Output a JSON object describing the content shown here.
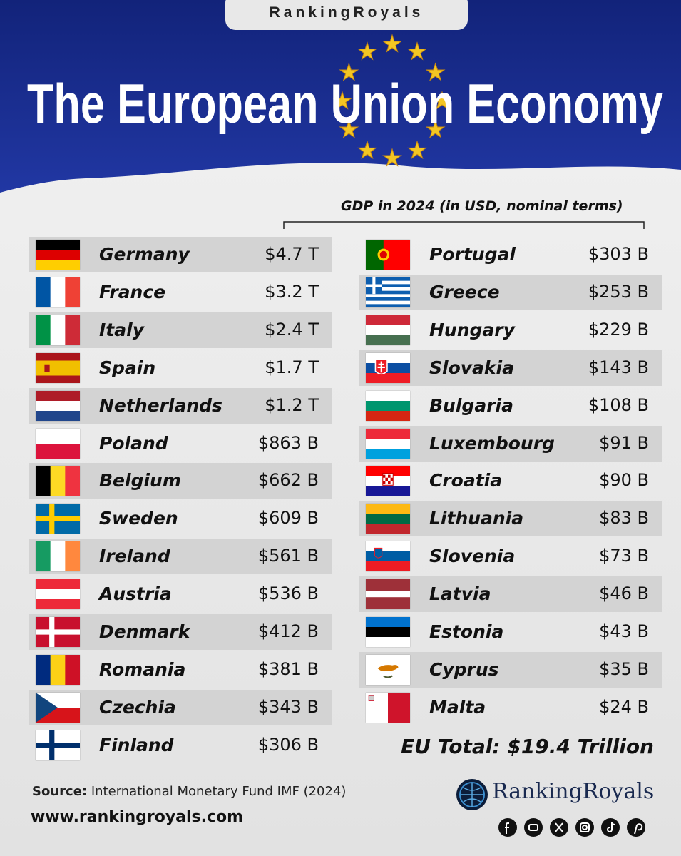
{
  "header": {
    "brand": "RankingRoyals",
    "title": "The European Union Economy"
  },
  "subtitle": "GDP in 2024 (in USD, nominal terms)",
  "table": {
    "left": [
      [
        "Germany",
        "$4.7 T"
      ],
      [
        "France",
        "$3.2 T"
      ],
      [
        "Italy",
        "$2.4 T"
      ],
      [
        "Spain",
        "$1.7 T"
      ],
      [
        "Netherlands",
        "$1.2 T"
      ],
      [
        "Poland",
        "$863 B"
      ],
      [
        "Belgium",
        "$662 B"
      ],
      [
        "Sweden",
        "$609 B"
      ],
      [
        "Ireland",
        "$561 B"
      ],
      [
        "Austria",
        "$536 B"
      ],
      [
        "Denmark",
        "$412 B"
      ],
      [
        "Romania",
        "$381 B"
      ],
      [
        "Czechia",
        "$343 B"
      ],
      [
        "Finland",
        "$306 B"
      ]
    ],
    "right": [
      [
        "Portugal",
        "$303 B"
      ],
      [
        "Greece",
        "$253 B"
      ],
      [
        "Hungary",
        "$229 B"
      ],
      [
        "Slovakia",
        "$143 B"
      ],
      [
        "Bulgaria",
        "$108 B"
      ],
      [
        "Luxembourg",
        "$91 B"
      ],
      [
        "Croatia",
        "$90 B"
      ],
      [
        "Lithuania",
        "$83 B"
      ],
      [
        "Slovenia",
        "$73 B"
      ],
      [
        "Latvia",
        "$46 B"
      ],
      [
        "Estonia",
        "$43 B"
      ],
      [
        "Cyprus",
        "$35 B"
      ],
      [
        "Malta",
        "$24 B"
      ]
    ]
  },
  "total": "EU Total: $19.4 Trillion",
  "footer": {
    "source_label": "Source:",
    "source_text": "International Monetary Fund IMF (2024)",
    "url": "www.rankingroyals.com",
    "logo": "RankingRoyals"
  }
}
